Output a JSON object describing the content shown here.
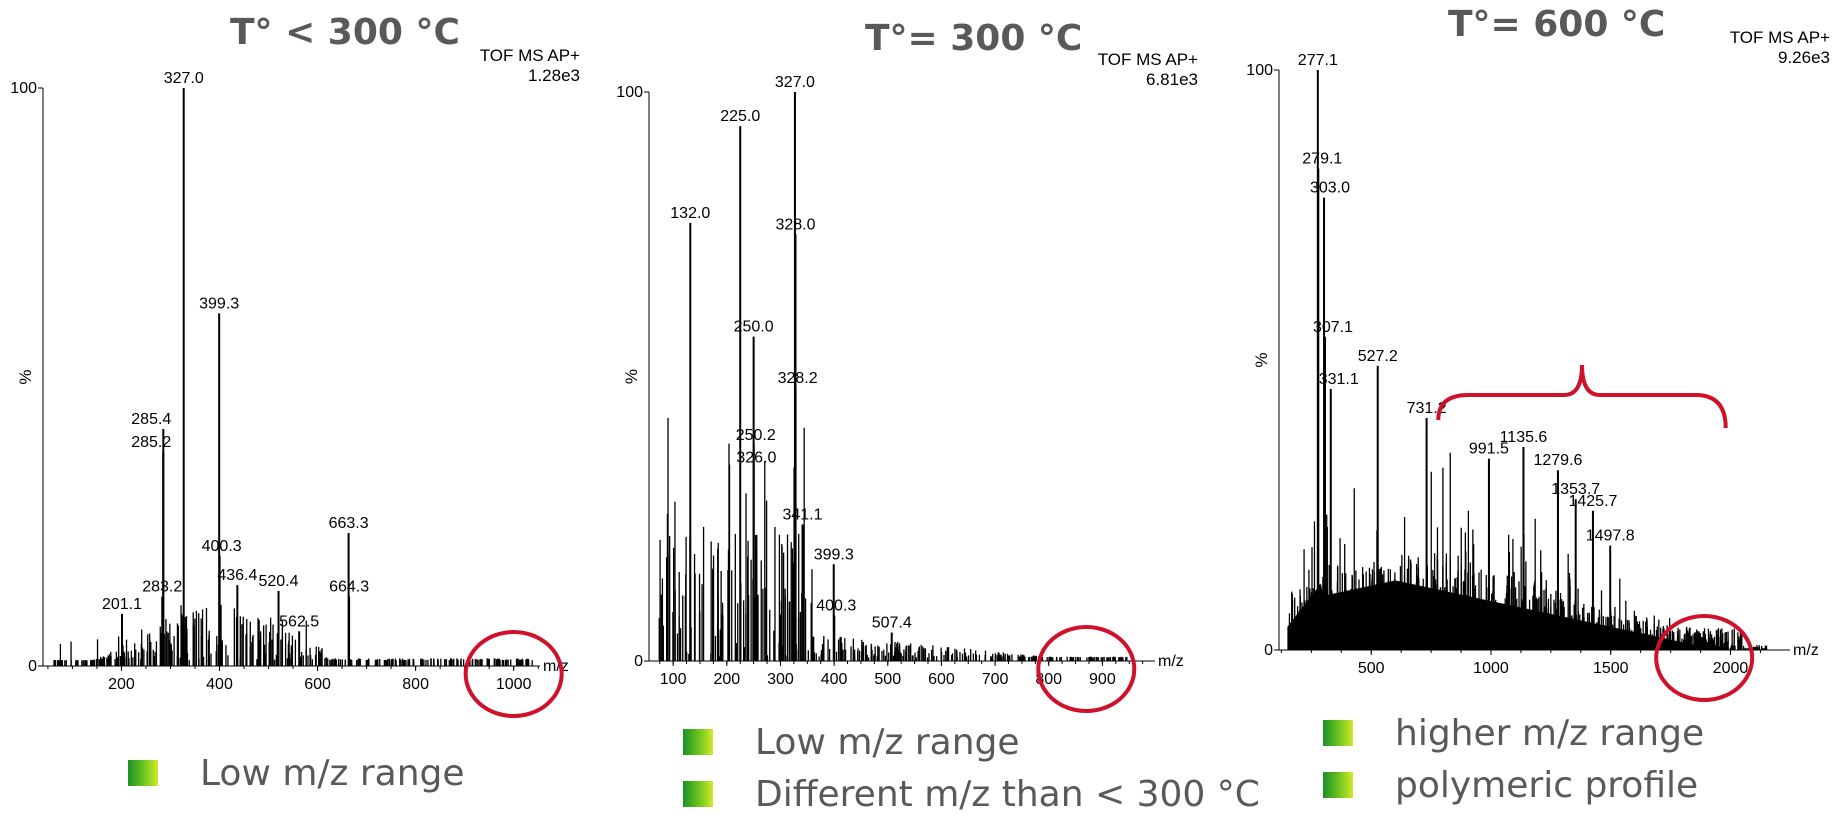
{
  "chart_data": [
    {
      "type": "bar",
      "title": "T° < 300 °C",
      "instrument": "TOF MS AP+",
      "max_intensity": "1.28e3",
      "xlabel": "m/z",
      "ylabel": "%",
      "xlim": [
        40,
        1070
      ],
      "ylim": [
        0,
        100
      ],
      "x_ticks": [
        200,
        400,
        600,
        800,
        1000
      ],
      "y_ticks": [
        0,
        100
      ],
      "peaks": [
        {
          "x": 201.1,
          "y": 9,
          "label": "201.1"
        },
        {
          "x": 283.2,
          "y": 12,
          "label": "283.2"
        },
        {
          "x": 285.2,
          "y": 37,
          "label": "285.2"
        },
        {
          "x": 285.4,
          "y": 41,
          "label": "285.4"
        },
        {
          "x": 327.0,
          "y": 100,
          "label": "327.0"
        },
        {
          "x": 399.3,
          "y": 61,
          "label": "399.3"
        },
        {
          "x": 400.3,
          "y": 19,
          "label": "400.3"
        },
        {
          "x": 436.4,
          "y": 14,
          "label": "436.4"
        },
        {
          "x": 520.4,
          "y": 13,
          "label": "520.4"
        },
        {
          "x": 562.5,
          "y": 6,
          "label": "562.5"
        },
        {
          "x": 663.3,
          "y": 23,
          "label": "663.3"
        },
        {
          "x": 664.3,
          "y": 12,
          "label": "664.3"
        }
      ],
      "highlight_circle_x": 1000,
      "bullets": [
        "Low m/z range"
      ]
    },
    {
      "type": "bar",
      "title": "T°= 300 °C",
      "instrument": "TOF MS AP+",
      "max_intensity": "6.81e3",
      "xlabel": "m/z",
      "ylabel": "%",
      "xlim": [
        55,
        985
      ],
      "ylim": [
        0,
        100
      ],
      "x_ticks": [
        100,
        200,
        300,
        400,
        500,
        600,
        700,
        800,
        900
      ],
      "y_ticks": [
        0,
        100
      ],
      "peaks": [
        {
          "x": 132.0,
          "y": 77,
          "label": "132.0"
        },
        {
          "x": 225.0,
          "y": 94,
          "label": "225.0"
        },
        {
          "x": 250.0,
          "y": 57,
          "label": "250.0"
        },
        {
          "x": 250.2,
          "y": 38,
          "label": "250.2"
        },
        {
          "x": 326.0,
          "y": 34,
          "label": "326.0"
        },
        {
          "x": 327.0,
          "y": 100,
          "label": "327.0"
        },
        {
          "x": 328.0,
          "y": 75,
          "label": "328.0"
        },
        {
          "x": 328.2,
          "y": 48,
          "label": "328.2"
        },
        {
          "x": 341.1,
          "y": 24,
          "label": "341.1"
        },
        {
          "x": 399.3,
          "y": 17,
          "label": "399.3"
        },
        {
          "x": 400.3,
          "y": 8,
          "label": "400.3"
        },
        {
          "x": 507.4,
          "y": 5,
          "label": "507.4"
        }
      ],
      "highlight_circle_x": 870,
      "bullets": [
        "Low m/z range",
        "Different m/z than < 300 °C"
      ]
    },
    {
      "type": "bar",
      "title": "T°= 600 °C",
      "instrument": "TOF MS AP+",
      "max_intensity": "9.26e3",
      "xlabel": "m/z",
      "ylabel": "%",
      "xlim": [
        115,
        2215
      ],
      "ylim": [
        0,
        100
      ],
      "x_ticks": [
        500,
        1000,
        1500,
        2000
      ],
      "y_ticks": [
        0,
        100
      ],
      "peaks": [
        {
          "x": 277.1,
          "y": 100,
          "label": "277.1"
        },
        {
          "x": 279.1,
          "y": 83,
          "label": "279.1"
        },
        {
          "x": 303.0,
          "y": 78,
          "label": "303.0"
        },
        {
          "x": 307.1,
          "y": 54,
          "label": "307.1"
        },
        {
          "x": 331.1,
          "y": 45,
          "label": "331.1"
        },
        {
          "x": 527.2,
          "y": 49,
          "label": "527.2"
        },
        {
          "x": 731.2,
          "y": 40,
          "label": "731.2"
        },
        {
          "x": 991.5,
          "y": 33,
          "label": "991.5"
        },
        {
          "x": 1135.6,
          "y": 35,
          "label": "1135.6"
        },
        {
          "x": 1279.6,
          "y": 31,
          "label": "1279.6"
        },
        {
          "x": 1353.7,
          "y": 26,
          "label": "1353.7"
        },
        {
          "x": 1425.7,
          "y": 24,
          "label": "1425.7"
        },
        {
          "x": 1497.8,
          "y": 18,
          "label": "1497.8"
        }
      ],
      "highlight_circle_x": 1890,
      "bracket_range": [
        780,
        1980
      ],
      "bullets": [
        "higher m/z range",
        "polymeric profile"
      ]
    }
  ],
  "colors": {
    "title": "#595959",
    "bullet_text": "#595959",
    "highlight": "#d0112b",
    "spectrum": "#000000"
  }
}
